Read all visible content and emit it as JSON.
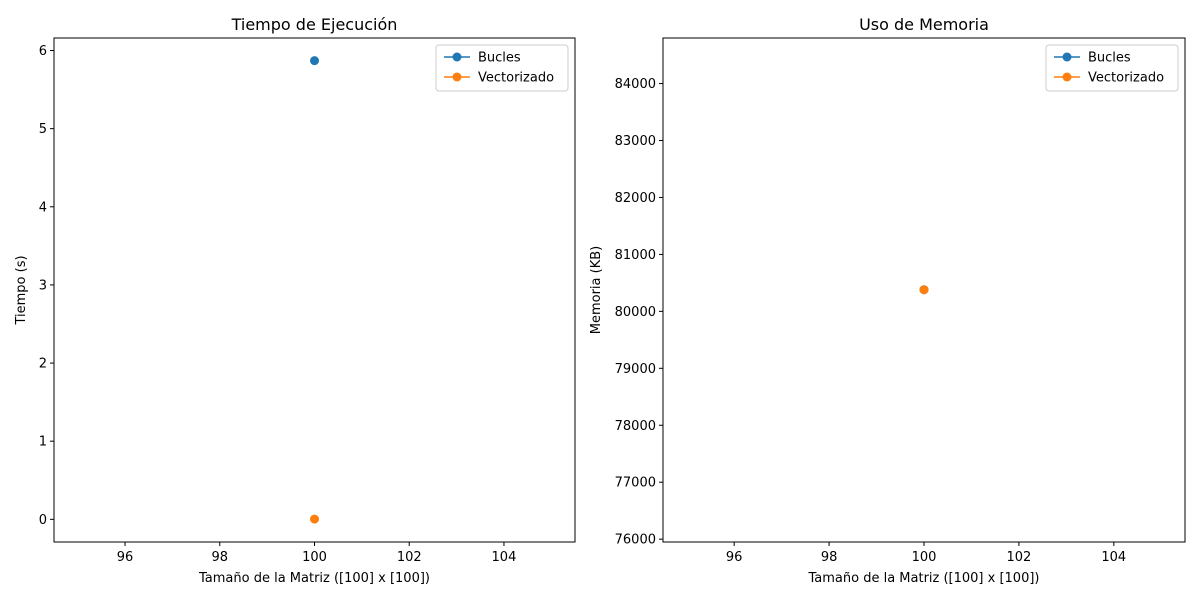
{
  "chart_data": [
    {
      "type": "line",
      "title": "Tiempo de Ejecución",
      "xlabel": "Tamaño de la Matriz ([100] x [100])",
      "ylabel": "Tiempo (s)",
      "xlim": [
        94.5,
        105.5
      ],
      "ylim": [
        -0.29,
        6.16
      ],
      "xticks": [
        96,
        98,
        100,
        102,
        104
      ],
      "yticks": [
        0,
        1,
        2,
        3,
        4,
        5,
        6
      ],
      "grid": false,
      "legend_position": "top-right",
      "series": [
        {
          "name": "Bucles",
          "color": "#1f77b4",
          "x": [
            100
          ],
          "y": [
            5.87
          ]
        },
        {
          "name": "Vectorizado",
          "color": "#ff7f0e",
          "x": [
            100
          ],
          "y": [
            0.003
          ]
        }
      ]
    },
    {
      "type": "line",
      "title": "Uso de Memoria",
      "xlabel": "Tamaño de la Matriz ([100] x [100])",
      "ylabel": "Memoria (KB)",
      "xlim": [
        94.5,
        105.5
      ],
      "ylim": [
        75950,
        84800
      ],
      "xticks": [
        96,
        98,
        100,
        102,
        104
      ],
      "yticks": [
        76000,
        77000,
        78000,
        79000,
        80000,
        81000,
        82000,
        83000,
        84000
      ],
      "grid": false,
      "legend_position": "top-right",
      "series": [
        {
          "name": "Bucles",
          "color": "#1f77b4",
          "x": [
            100
          ],
          "y": [
            80380
          ]
        },
        {
          "name": "Vectorizado",
          "color": "#ff7f0e",
          "x": [
            100
          ],
          "y": [
            80380
          ]
        }
      ]
    }
  ]
}
